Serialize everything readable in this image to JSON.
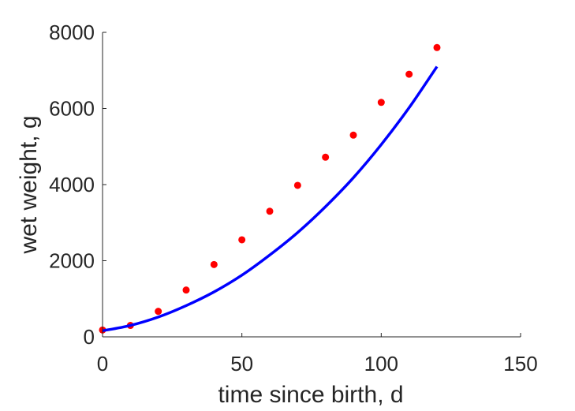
{
  "chart_data": {
    "type": "scatter",
    "xlabel": "time since birth, d",
    "ylabel": "wet weight, g",
    "xlim": [
      0,
      150
    ],
    "ylim": [
      0,
      8000
    ],
    "xticks": [
      "0",
      "50",
      "100",
      "150"
    ],
    "yticks": [
      "0",
      "2000",
      "4000",
      "6000",
      "8000"
    ],
    "grid": false,
    "series": [
      {
        "kind": "points",
        "color": "#ff0000",
        "x": [
          0,
          10,
          20,
          30,
          40,
          50,
          60,
          70,
          80,
          90,
          100,
          110,
          120
        ],
        "y": [
          180,
          300,
          670,
          1230,
          1900,
          2550,
          3300,
          3980,
          4720,
          5300,
          6160,
          6900,
          7600
        ]
      },
      {
        "kind": "line",
        "color": "#0000ff",
        "x": [
          0,
          10,
          20,
          30,
          40,
          50,
          60,
          70,
          80,
          90,
          100,
          110,
          120
        ],
        "y": [
          160,
          300,
          520,
          820,
          1180,
          1620,
          2150,
          2740,
          3420,
          4180,
          5050,
          6020,
          7100
        ]
      }
    ]
  }
}
